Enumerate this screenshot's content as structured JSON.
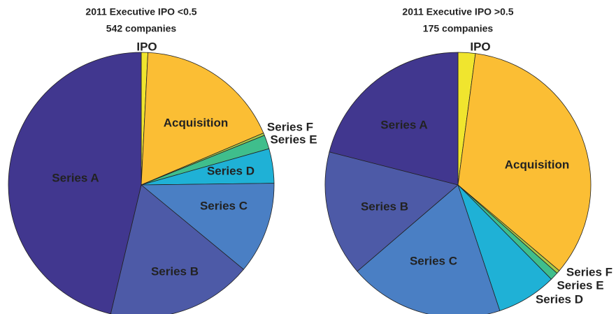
{
  "chart_data": [
    {
      "type": "pie",
      "title": "2011 Executive IPO <0.5",
      "subtitle": "542 companies",
      "categories": [
        "IPO",
        "Acquisition",
        "Series F",
        "Series E",
        "Series D",
        "Series C",
        "Series B",
        "Series A"
      ],
      "values": [
        0.8,
        17.8,
        0.3,
        1.7,
        4.2,
        11.2,
        17.7,
        46.3
      ],
      "colors": [
        "#f0e52e",
        "#fbbe34",
        "#a8c94a",
        "#3fbe8c",
        "#1fb1d6",
        "#4a7fc4",
        "#4d5aa7",
        "#41378f"
      ]
    },
    {
      "type": "pie",
      "title": "2011 Executive IPO  >0.5",
      "subtitle": "175 companies",
      "categories": [
        "IPO",
        "Acquisition",
        "Series F",
        "Series E",
        "Series D",
        "Series C",
        "Series B",
        "Series A"
      ],
      "values": [
        2.1,
        34.1,
        0.4,
        1.0,
        7.3,
        18.8,
        15.3,
        21.0
      ],
      "colors": [
        "#f0e52e",
        "#fbbe34",
        "#a8c94a",
        "#3fbe8c",
        "#1fb1d6",
        "#4a7fc4",
        "#4d5aa7",
        "#41378f"
      ]
    }
  ]
}
